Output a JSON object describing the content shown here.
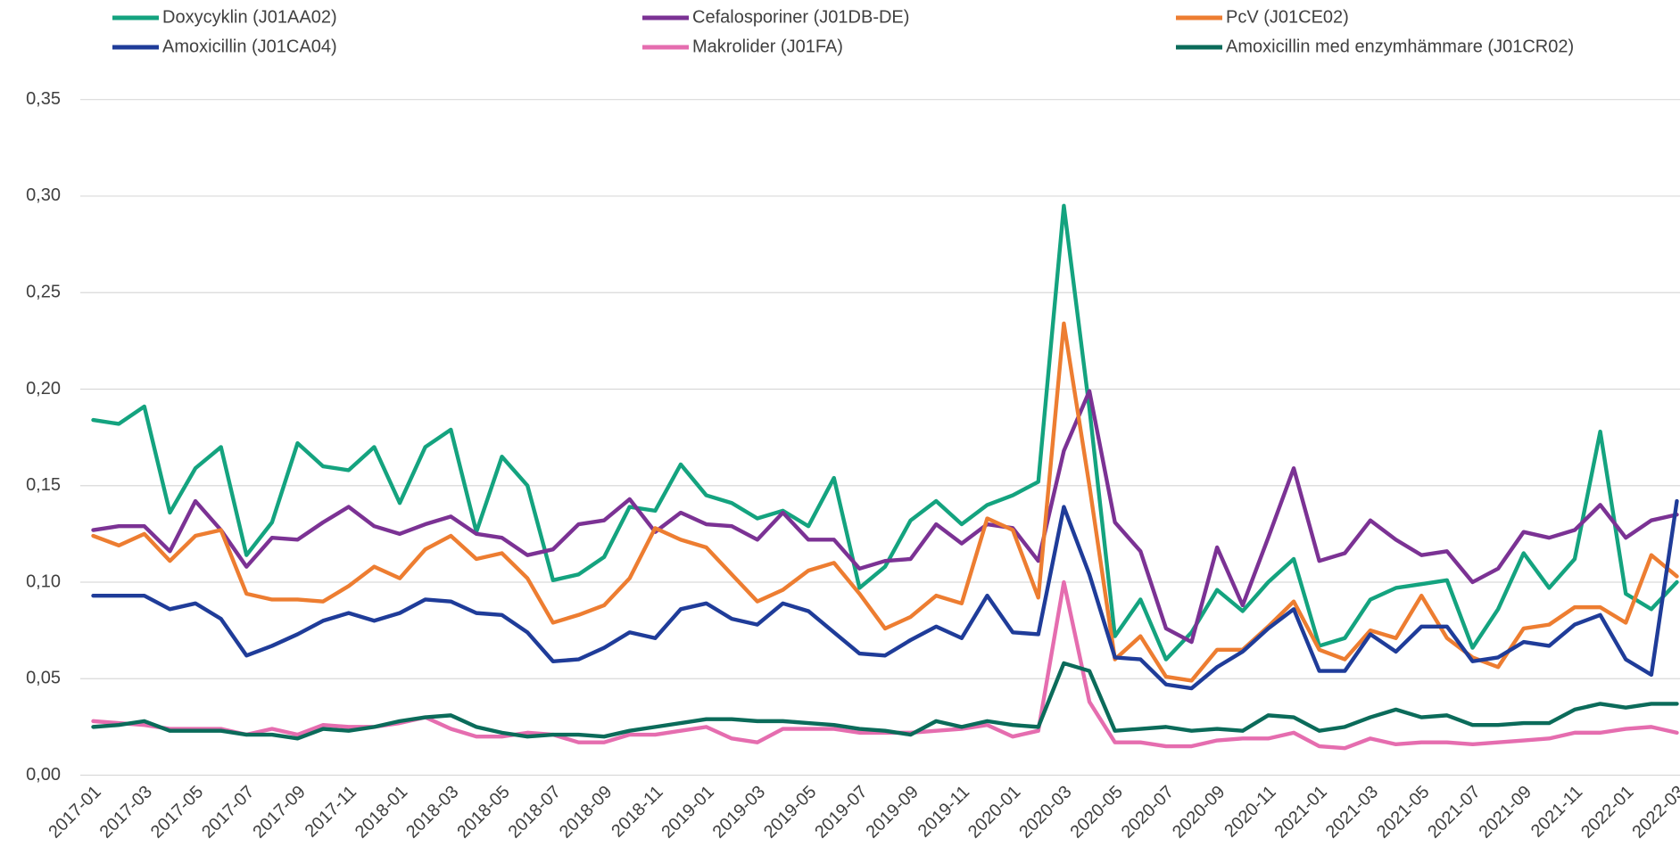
{
  "chart_data": {
    "type": "line",
    "categories": [
      "2017-01",
      null,
      "2017-03",
      null,
      "2017-05",
      null,
      "2017-07",
      null,
      "2017-09",
      null,
      "2017-11",
      null,
      "2018-01",
      null,
      "2018-03",
      null,
      "2018-05",
      null,
      "2018-07",
      null,
      "2018-09",
      null,
      "2018-11",
      null,
      "2019-01",
      null,
      "2019-03",
      null,
      "2019-05",
      null,
      "2019-07",
      null,
      "2019-09",
      null,
      "2019-11",
      null,
      "2020-01",
      null,
      "2020-03",
      null,
      "2020-05",
      null,
      "2020-07",
      null,
      "2020-09",
      null,
      "2020-11",
      null,
      "2021-01",
      null,
      "2021-03",
      null,
      "2021-05",
      null,
      "2021-07",
      null,
      "2021-09",
      null,
      "2021-11",
      null,
      "2022-01",
      null,
      "2022-03"
    ],
    "series": [
      {
        "name": "Doxycyklin (J01AA02)",
        "color": "#14a37f",
        "values": [
          0.184,
          0.182,
          0.191,
          0.136,
          0.159,
          0.17,
          0.114,
          0.131,
          0.172,
          0.16,
          0.158,
          0.17,
          0.141,
          0.17,
          0.179,
          0.126,
          0.165,
          0.15,
          0.101,
          0.104,
          0.113,
          0.139,
          0.137,
          0.161,
          0.145,
          0.141,
          0.133,
          0.137,
          0.129,
          0.154,
          0.097,
          0.108,
          0.132,
          0.142,
          0.13,
          0.14,
          0.145,
          0.152,
          0.295,
          0.19,
          0.072,
          0.091,
          0.06,
          0.074,
          0.096,
          0.085,
          0.1,
          0.112,
          0.067,
          0.071,
          0.091,
          0.097,
          0.099,
          0.101,
          0.066,
          0.086,
          0.115,
          0.097,
          0.112,
          0.178,
          0.094,
          0.086,
          0.1
        ]
      },
      {
        "name": "Cefalosporiner (J01DB-DE)",
        "color": "#7b3294",
        "values": [
          0.127,
          0.129,
          0.129,
          0.116,
          0.142,
          0.127,
          0.108,
          0.123,
          0.122,
          0.131,
          0.139,
          0.129,
          0.125,
          0.13,
          0.134,
          0.125,
          0.123,
          0.114,
          0.117,
          0.13,
          0.132,
          0.143,
          0.126,
          0.136,
          0.13,
          0.129,
          0.122,
          0.136,
          0.122,
          0.122,
          0.107,
          0.111,
          0.112,
          0.13,
          0.12,
          0.13,
          0.128,
          0.111,
          0.168,
          0.199,
          0.131,
          0.116,
          0.076,
          0.069,
          0.118,
          0.088,
          0.123,
          0.159,
          0.111,
          0.115,
          0.132,
          0.122,
          0.114,
          0.116,
          0.1,
          0.107,
          0.126,
          0.123,
          0.127,
          0.14,
          0.123,
          0.132,
          0.135
        ]
      },
      {
        "name": "PcV (J01CE02)",
        "color": "#ed7d31",
        "values": [
          0.124,
          0.119,
          0.125,
          0.111,
          0.124,
          0.127,
          0.094,
          0.091,
          0.091,
          0.09,
          0.098,
          0.108,
          0.102,
          0.117,
          0.124,
          0.112,
          0.115,
          0.102,
          0.079,
          0.083,
          0.088,
          0.102,
          0.128,
          0.122,
          0.118,
          0.104,
          0.09,
          0.096,
          0.106,
          0.11,
          0.094,
          0.076,
          0.082,
          0.093,
          0.089,
          0.133,
          0.127,
          0.092,
          0.234,
          0.15,
          0.06,
          0.072,
          0.051,
          0.049,
          0.065,
          0.065,
          0.077,
          0.09,
          0.065,
          0.06,
          0.075,
          0.071,
          0.093,
          0.071,
          0.061,
          0.056,
          0.076,
          0.078,
          0.087,
          0.087,
          0.079,
          0.114,
          0.103
        ]
      },
      {
        "name": "Amoxicillin (J01CA04)",
        "color": "#1f3c99",
        "values": [
          0.093,
          0.093,
          0.093,
          0.086,
          0.089,
          0.081,
          0.062,
          0.067,
          0.073,
          0.08,
          0.084,
          0.08,
          0.084,
          0.091,
          0.09,
          0.084,
          0.083,
          0.074,
          0.059,
          0.06,
          0.066,
          0.074,
          0.071,
          0.086,
          0.089,
          0.081,
          0.078,
          0.089,
          0.085,
          0.074,
          0.063,
          0.062,
          0.07,
          0.077,
          0.071,
          0.093,
          0.074,
          0.073,
          0.139,
          0.104,
          0.061,
          0.06,
          0.047,
          0.045,
          0.056,
          0.064,
          0.076,
          0.086,
          0.054,
          0.054,
          0.073,
          0.064,
          0.077,
          0.077,
          0.059,
          0.061,
          0.069,
          0.067,
          0.078,
          0.083,
          0.06,
          0.052,
          0.142
        ]
      },
      {
        "name": "Makrolider (J01FA)",
        "color": "#e56daf",
        "values": [
          0.028,
          0.027,
          0.026,
          0.024,
          0.024,
          0.024,
          0.021,
          0.024,
          0.021,
          0.026,
          0.025,
          0.025,
          0.027,
          0.03,
          0.024,
          0.02,
          0.02,
          0.022,
          0.021,
          0.017,
          0.017,
          0.021,
          0.021,
          0.023,
          0.025,
          0.019,
          0.017,
          0.024,
          0.024,
          0.024,
          0.022,
          0.022,
          0.022,
          0.023,
          0.024,
          0.026,
          0.02,
          0.023,
          0.1,
          0.038,
          0.017,
          0.017,
          0.015,
          0.015,
          0.018,
          0.019,
          0.019,
          0.022,
          0.015,
          0.014,
          0.019,
          0.016,
          0.017,
          0.017,
          0.016,
          0.017,
          0.018,
          0.019,
          0.022,
          0.022,
          0.024,
          0.025,
          0.022
        ]
      },
      {
        "name": "Amoxicillin med enzymhämmare (J01CR02)",
        "color": "#0b6b5a",
        "values": [
          0.025,
          0.026,
          0.028,
          0.023,
          0.023,
          0.023,
          0.021,
          0.021,
          0.019,
          0.024,
          0.023,
          0.025,
          0.028,
          0.03,
          0.031,
          0.025,
          0.022,
          0.02,
          0.021,
          0.021,
          0.02,
          0.023,
          0.025,
          0.027,
          0.029,
          0.029,
          0.028,
          0.028,
          0.027,
          0.026,
          0.024,
          0.023,
          0.021,
          0.028,
          0.025,
          0.028,
          0.026,
          0.025,
          0.058,
          0.054,
          0.023,
          0.024,
          0.025,
          0.023,
          0.024,
          0.023,
          0.031,
          0.03,
          0.023,
          0.025,
          0.03,
          0.034,
          0.03,
          0.031,
          0.026,
          0.026,
          0.027,
          0.027,
          0.034,
          0.037,
          0.035,
          0.037,
          0.037
        ]
      }
    ],
    "ylim": [
      0,
      0.35
    ],
    "yticks": [
      {
        "value": 0,
        "label": "0,00"
      },
      {
        "value": 0.05,
        "label": "0,05"
      },
      {
        "value": 0.1,
        "label": "0,10"
      },
      {
        "value": 0.15,
        "label": "0,15"
      },
      {
        "value": 0.2,
        "label": "0,20"
      },
      {
        "value": 0.25,
        "label": "0,25"
      },
      {
        "value": 0.3,
        "label": "0,30"
      },
      {
        "value": 0.35,
        "label": "0,35"
      }
    ],
    "grid": true,
    "legend": "top"
  }
}
